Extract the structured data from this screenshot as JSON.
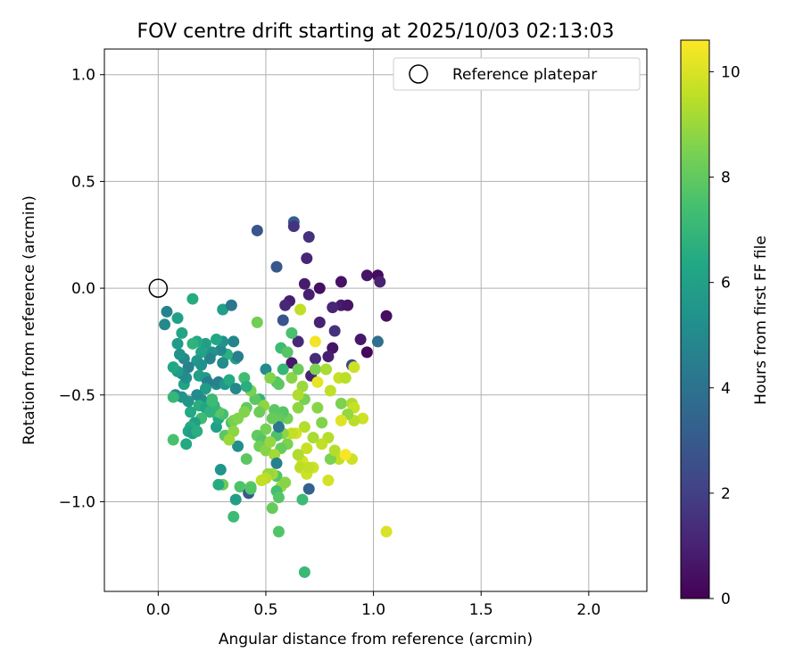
{
  "chart_data": {
    "type": "scatter",
    "title": "FOV centre drift starting at 2025/10/03 02:13:03",
    "xlabel": "Angular distance from reference (arcmin)",
    "ylabel": "Rotation from reference (arcmin)",
    "xlim": [
      -0.25,
      2.27
    ],
    "ylim": [
      -1.42,
      1.12
    ],
    "xticks": [
      0.0,
      0.5,
      1.0,
      1.5,
      2.0
    ],
    "xtick_labels": [
      "0.0",
      "0.5",
      "1.0",
      "1.5",
      "2.0"
    ],
    "yticks": [
      -1.0,
      -0.5,
      0.0,
      0.5,
      1.0
    ],
    "ytick_labels": [
      "−1.0",
      "−0.5",
      "0.0",
      "0.5",
      "1.0"
    ],
    "grid": true,
    "legend": {
      "placement": "top-right",
      "label": "Reference platepar"
    },
    "reference_point": {
      "x": 0.0,
      "y": 0.0
    },
    "colorbar": {
      "label": "Hours from first FF file",
      "range": [
        0,
        10.6
      ],
      "ticks": [
        0,
        2,
        4,
        6,
        8,
        10
      ],
      "tick_labels": [
        "0",
        "2",
        "4",
        "6",
        "8",
        "10"
      ],
      "colormap": "viridis"
    },
    "series": [
      {
        "name": "FOV centre drift",
        "points": [
          [
            0.63,
            0.31,
            3.2
          ],
          [
            0.63,
            0.29,
            1.6
          ],
          [
            0.7,
            0.24,
            1.5
          ],
          [
            0.46,
            0.27,
            2.8
          ],
          [
            0.55,
            0.1,
            2.9
          ],
          [
            0.69,
            0.14,
            1.1
          ],
          [
            0.68,
            0.02,
            0.8
          ],
          [
            0.75,
            0.0,
            0.4
          ],
          [
            0.7,
            -0.03,
            0.9
          ],
          [
            0.85,
            0.03,
            0.5
          ],
          [
            0.97,
            0.06,
            0.6
          ],
          [
            1.02,
            0.06,
            0.3
          ],
          [
            1.03,
            0.03,
            1.0
          ],
          [
            1.06,
            -0.13,
            0.4
          ],
          [
            1.02,
            -0.25,
            3.9
          ],
          [
            0.94,
            -0.24,
            0.7
          ],
          [
            0.97,
            -0.3,
            0.2
          ],
          [
            0.85,
            -0.08,
            0.8
          ],
          [
            0.88,
            -0.08,
            0.6
          ],
          [
            0.81,
            -0.09,
            1.1
          ],
          [
            0.82,
            -0.2,
            1.5
          ],
          [
            0.81,
            -0.28,
            0.6
          ],
          [
            0.79,
            -0.32,
            0.9
          ],
          [
            0.75,
            -0.16,
            1.0
          ],
          [
            0.73,
            -0.33,
            1.3
          ],
          [
            0.65,
            -0.25,
            1.2
          ],
          [
            0.66,
            -0.1,
            9.6
          ],
          [
            0.61,
            -0.06,
            0.9
          ],
          [
            0.59,
            -0.08,
            1.2
          ],
          [
            0.58,
            -0.15,
            2.8
          ],
          [
            0.62,
            -0.35,
            0.7
          ],
          [
            0.73,
            -0.25,
            10.4
          ],
          [
            0.71,
            -0.41,
            1.0
          ],
          [
            0.74,
            -0.44,
            10.2
          ],
          [
            0.62,
            -0.21,
            7.5
          ],
          [
            0.57,
            -0.28,
            7.2
          ],
          [
            0.6,
            -0.3,
            7.8
          ],
          [
            0.58,
            -0.38,
            7.0
          ],
          [
            0.55,
            -0.44,
            7.6
          ],
          [
            0.5,
            -0.38,
            5.0
          ],
          [
            0.46,
            -0.16,
            8.3
          ],
          [
            0.47,
            -0.52,
            6.8
          ],
          [
            0.52,
            -0.42,
            8.6
          ],
          [
            0.56,
            -0.45,
            7.9
          ],
          [
            0.62,
            -0.42,
            8.7
          ],
          [
            0.65,
            -0.38,
            8.2
          ],
          [
            0.73,
            -0.38,
            8.5
          ],
          [
            0.78,
            -0.38,
            9.2
          ],
          [
            0.8,
            -0.48,
            9.6
          ],
          [
            0.84,
            -0.42,
            9.7
          ],
          [
            0.9,
            -0.36,
            2.4
          ],
          [
            0.91,
            -0.37,
            9.8
          ],
          [
            0.87,
            -0.42,
            9.5
          ],
          [
            0.85,
            -0.54,
            8.5
          ],
          [
            0.9,
            -0.54,
            9.3
          ],
          [
            0.91,
            -0.56,
            9.7
          ],
          [
            0.95,
            -0.61,
            9.8
          ],
          [
            0.91,
            -0.62,
            9.5
          ],
          [
            0.88,
            -0.59,
            8.9
          ],
          [
            0.85,
            -0.62,
            10.1
          ],
          [
            0.76,
            -0.63,
            8.6
          ],
          [
            0.79,
            -0.7,
            9.4
          ],
          [
            0.76,
            -0.73,
            9.6
          ],
          [
            0.72,
            -0.7,
            9.2
          ],
          [
            0.74,
            -0.56,
            8.7
          ],
          [
            0.68,
            -0.52,
            8.4
          ],
          [
            0.67,
            -0.46,
            9.0
          ],
          [
            0.65,
            -0.5,
            9.3
          ],
          [
            0.65,
            -0.56,
            8.8
          ],
          [
            0.68,
            -0.65,
            9.4
          ],
          [
            0.69,
            -0.75,
            9.7
          ],
          [
            0.67,
            -0.81,
            9.9
          ],
          [
            0.66,
            -0.84,
            9.5
          ],
          [
            0.69,
            -0.87,
            9.8
          ],
          [
            0.64,
            -0.68,
            9.9
          ],
          [
            0.62,
            -0.68,
            9.6
          ],
          [
            0.6,
            -0.61,
            8.3
          ],
          [
            0.58,
            -0.58,
            7.8
          ],
          [
            0.56,
            -0.61,
            8.0
          ],
          [
            0.58,
            -0.68,
            8.8
          ],
          [
            0.6,
            -0.73,
            8.5
          ],
          [
            0.57,
            -0.75,
            8.1
          ],
          [
            0.55,
            -0.69,
            7.6
          ],
          [
            0.56,
            -0.65,
            4.2
          ],
          [
            0.54,
            -0.57,
            7.9
          ],
          [
            0.53,
            -0.61,
            8.1
          ],
          [
            0.5,
            -0.66,
            8.4
          ],
          [
            0.49,
            -0.55,
            8.8
          ],
          [
            0.47,
            -0.58,
            8.2
          ],
          [
            0.45,
            -0.52,
            7.9
          ],
          [
            0.43,
            -0.48,
            8.4
          ],
          [
            0.46,
            -0.69,
            8.0
          ],
          [
            0.48,
            -0.71,
            7.8
          ],
          [
            0.47,
            -0.74,
            8.3
          ],
          [
            0.5,
            -0.76,
            8.7
          ],
          [
            0.52,
            -0.72,
            8.9
          ],
          [
            0.54,
            -0.78,
            9.1
          ],
          [
            0.55,
            -0.82,
            4.6
          ],
          [
            0.55,
            -0.88,
            7.7
          ],
          [
            0.57,
            -0.93,
            9.0
          ],
          [
            0.53,
            -0.87,
            9.1
          ],
          [
            0.51,
            -0.87,
            8.9
          ],
          [
            0.5,
            -0.89,
            9.5
          ],
          [
            0.48,
            -0.9,
            9.6
          ],
          [
            0.55,
            -0.95,
            7.4
          ],
          [
            0.59,
            -0.91,
            8.7
          ],
          [
            0.56,
            -0.98,
            7.8
          ],
          [
            0.53,
            -1.03,
            8.1
          ],
          [
            0.56,
            -1.14,
            7.7
          ],
          [
            0.67,
            -0.99,
            7.2
          ],
          [
            0.7,
            -0.94,
            3.3
          ],
          [
            0.68,
            -1.33,
            7.1
          ],
          [
            1.06,
            -1.14,
            10.0
          ],
          [
            0.79,
            -0.9,
            9.9
          ],
          [
            0.84,
            -0.8,
            9.6
          ],
          [
            0.9,
            -0.8,
            9.8
          ],
          [
            0.8,
            -0.8,
            8.5
          ],
          [
            0.82,
            -0.76,
            9.4
          ],
          [
            0.87,
            -0.78,
            10.5
          ],
          [
            0.72,
            -0.84,
            9.8
          ],
          [
            0.7,
            -0.84,
            9.6
          ],
          [
            0.65,
            -0.78,
            9.3
          ],
          [
            0.41,
            -0.56,
            8.0
          ],
          [
            0.4,
            -0.58,
            8.6
          ],
          [
            0.41,
            -0.8,
            7.9
          ],
          [
            0.37,
            -0.74,
            5.2
          ],
          [
            0.36,
            -0.99,
            5.9
          ],
          [
            0.38,
            -0.93,
            7.6
          ],
          [
            0.42,
            -0.95,
            7.8
          ],
          [
            0.43,
            -0.93,
            8.0
          ],
          [
            0.42,
            -0.96,
            3.0
          ],
          [
            0.43,
            -0.94,
            7.7
          ],
          [
            0.35,
            -1.07,
            7.2
          ],
          [
            0.3,
            -0.92,
            8.2
          ],
          [
            0.28,
            -0.92,
            6.5
          ],
          [
            0.29,
            -0.85,
            5.5
          ],
          [
            0.31,
            -0.69,
            7.9
          ],
          [
            0.27,
            -0.65,
            6.0
          ],
          [
            0.28,
            -0.61,
            6.4
          ],
          [
            0.3,
            -0.59,
            7.4
          ],
          [
            0.34,
            -0.63,
            7.6
          ],
          [
            0.35,
            -0.62,
            8.4
          ],
          [
            0.37,
            -0.61,
            8.6
          ],
          [
            0.35,
            -0.67,
            8.8
          ],
          [
            0.33,
            -0.71,
            9.0
          ],
          [
            0.28,
            -0.58,
            7.8
          ],
          [
            0.26,
            -0.55,
            6.9
          ],
          [
            0.25,
            -0.52,
            7.1
          ],
          [
            0.27,
            -0.45,
            5.3
          ],
          [
            0.28,
            -0.44,
            4.6
          ],
          [
            0.31,
            -0.45,
            5.6
          ],
          [
            0.33,
            -0.43,
            6.5
          ],
          [
            0.36,
            -0.47,
            4.9
          ],
          [
            0.4,
            -0.42,
            7.3
          ],
          [
            0.41,
            -0.46,
            6.6
          ],
          [
            0.36,
            -0.33,
            5.9
          ],
          [
            0.37,
            -0.32,
            4.5
          ],
          [
            0.32,
            -0.31,
            6.7
          ],
          [
            0.3,
            -0.35,
            5.1
          ],
          [
            0.29,
            -0.29,
            4.9
          ],
          [
            0.3,
            -0.25,
            5.3
          ],
          [
            0.35,
            -0.25,
            4.8
          ],
          [
            0.27,
            -0.24,
            6.3
          ],
          [
            0.25,
            -0.3,
            5.4
          ],
          [
            0.24,
            -0.33,
            4.7
          ],
          [
            0.22,
            -0.26,
            5.9
          ],
          [
            0.2,
            -0.3,
            6.1
          ],
          [
            0.18,
            -0.25,
            6.4
          ],
          [
            0.16,
            -0.26,
            6.8
          ],
          [
            0.18,
            -0.34,
            5.6
          ],
          [
            0.2,
            -0.36,
            5.3
          ],
          [
            0.19,
            -0.41,
            6.0
          ],
          [
            0.22,
            -0.42,
            5.7
          ],
          [
            0.23,
            -0.44,
            4.5
          ],
          [
            0.22,
            -0.47,
            5.8
          ],
          [
            0.2,
            -0.52,
            5.2
          ],
          [
            0.18,
            -0.5,
            5.0
          ],
          [
            0.19,
            -0.55,
            6.6
          ],
          [
            0.22,
            -0.56,
            6.2
          ],
          [
            0.24,
            -0.58,
            6.8
          ],
          [
            0.2,
            -0.61,
            7.2
          ],
          [
            0.17,
            -0.63,
            6.0
          ],
          [
            0.15,
            -0.65,
            6.5
          ],
          [
            0.14,
            -0.67,
            6.2
          ],
          [
            0.16,
            -0.68,
            5.8
          ],
          [
            0.15,
            -0.58,
            6.4
          ],
          [
            0.14,
            -0.53,
            5.5
          ],
          [
            0.12,
            -0.45,
            6.1
          ],
          [
            0.13,
            -0.42,
            5.2
          ],
          [
            0.14,
            -0.37,
            4.6
          ],
          [
            0.12,
            -0.33,
            4.9
          ],
          [
            0.1,
            -0.31,
            5.4
          ],
          [
            0.11,
            -0.4,
            5.0
          ],
          [
            0.09,
            -0.39,
            5.8
          ],
          [
            0.07,
            -0.37,
            6.3
          ],
          [
            0.08,
            -0.5,
            4.8
          ],
          [
            0.11,
            -0.51,
            5.5
          ],
          [
            0.07,
            -0.51,
            7.0
          ],
          [
            0.09,
            -0.26,
            5.7
          ],
          [
            0.11,
            -0.21,
            6.2
          ],
          [
            0.09,
            -0.14,
            6.0
          ],
          [
            0.04,
            -0.11,
            4.7
          ],
          [
            0.03,
            -0.17,
            4.9
          ],
          [
            0.16,
            -0.05,
            6.5
          ],
          [
            0.3,
            -0.1,
            6.0
          ],
          [
            0.34,
            -0.08,
            4.2
          ],
          [
            0.13,
            -0.73,
            6.4
          ],
          [
            0.07,
            -0.71,
            7.5
          ],
          [
            0.25,
            -0.53,
            7.2
          ],
          [
            0.18,
            -0.67,
            6.6
          ]
        ]
      }
    ]
  }
}
